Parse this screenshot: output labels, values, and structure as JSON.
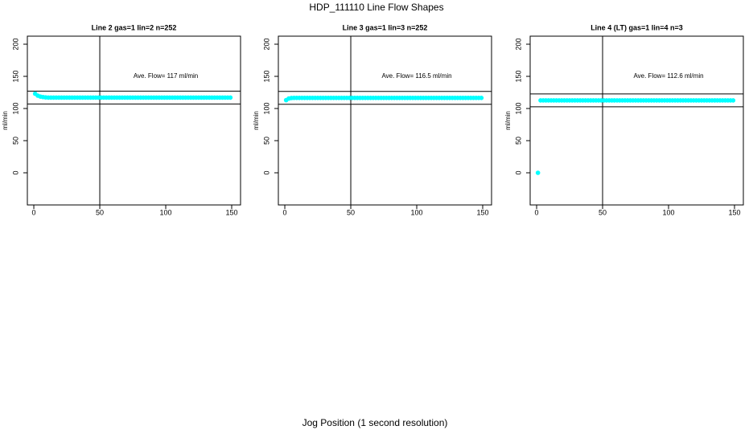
{
  "title": "HDP_111110  Line Flow Shapes",
  "x_label": "Jog Position (1 second resolution)",
  "chart_data": [
    {
      "type": "scatter",
      "title": "Line 2 gas=1 lin=2 n=252",
      "y_label": "ml/min",
      "annotation": "Ave. Flow=  117  ml/min",
      "xlim": [
        -4.9,
        156.7
      ],
      "ylim": [
        -50,
        212.5
      ],
      "xticks": [
        0,
        50,
        100,
        150
      ],
      "yticks": [
        0,
        50,
        100,
        150,
        200
      ],
      "hlines": [
        127,
        107
      ],
      "vlines": [
        50
      ],
      "series": [
        {
          "color": "#00ffff",
          "x": [
            1,
            3,
            5,
            7,
            9,
            11,
            13,
            15,
            17,
            19,
            21,
            23,
            25,
            27,
            29,
            31,
            33,
            35,
            37,
            39,
            41,
            43,
            45,
            47,
            49,
            51,
            53,
            55,
            57,
            59,
            61,
            63,
            65,
            67,
            69,
            71,
            73,
            75,
            77,
            79,
            81,
            83,
            85,
            87,
            89,
            91,
            93,
            95,
            97,
            99,
            101,
            103,
            105,
            107,
            109,
            111,
            113,
            115,
            117,
            119,
            121,
            123,
            125,
            127,
            129,
            131,
            133,
            135,
            137,
            139,
            141,
            143,
            145,
            147,
            149
          ],
          "values": [
            123,
            120,
            118.5,
            117.8,
            117.3,
            117,
            117,
            117,
            117,
            117,
            117,
            117,
            117,
            117,
            117,
            117,
            117,
            117,
            117,
            117,
            117,
            117,
            117,
            117,
            117,
            117,
            117,
            117,
            117,
            117,
            117,
            117,
            117,
            117,
            117,
            117,
            117,
            117,
            117,
            117,
            117,
            117,
            117,
            117,
            117,
            117,
            117,
            117,
            117,
            117,
            117,
            117,
            117,
            117,
            117,
            117,
            117,
            117,
            117,
            117,
            117,
            117,
            117,
            117,
            117,
            117,
            117,
            117,
            117,
            117,
            117,
            117,
            117,
            117,
            117
          ]
        }
      ]
    },
    {
      "type": "scatter",
      "title": "Line 3 gas=1 lin=3 n=252",
      "y_label": "ml/min",
      "annotation": "Ave. Flow=  116.5  ml/min",
      "xlim": [
        -4.9,
        156.7
      ],
      "ylim": [
        -50,
        212.5
      ],
      "xticks": [
        0,
        50,
        100,
        150
      ],
      "yticks": [
        0,
        50,
        100,
        150,
        200
      ],
      "hlines": [
        126.5,
        106.5
      ],
      "vlines": [
        50
      ],
      "series": [
        {
          "color": "#00ffff",
          "x": [
            1,
            3,
            5,
            7,
            9,
            11,
            13,
            15,
            17,
            19,
            21,
            23,
            25,
            27,
            29,
            31,
            33,
            35,
            37,
            39,
            41,
            43,
            45,
            47,
            49,
            51,
            53,
            55,
            57,
            59,
            61,
            63,
            65,
            67,
            69,
            71,
            73,
            75,
            77,
            79,
            81,
            83,
            85,
            87,
            89,
            91,
            93,
            95,
            97,
            99,
            101,
            103,
            105,
            107,
            109,
            111,
            113,
            115,
            117,
            119,
            121,
            123,
            125,
            127,
            129,
            131,
            133,
            135,
            137,
            139,
            141,
            143,
            145,
            147,
            149
          ],
          "values": [
            113,
            115.5,
            116.3,
            116.5,
            116.5,
            116.5,
            116.5,
            116.5,
            116.5,
            116.5,
            116.5,
            116.5,
            116.5,
            116.5,
            116.5,
            116.5,
            116.5,
            116.5,
            116.5,
            116.5,
            116.5,
            116.5,
            116.5,
            116.5,
            116.5,
            116.5,
            116.5,
            116.5,
            116.5,
            116.5,
            116.5,
            116.5,
            116.5,
            116.5,
            116.5,
            116.5,
            116.5,
            116.5,
            116.5,
            116.5,
            116.5,
            116.5,
            116.5,
            116.5,
            116.5,
            116.5,
            116.5,
            116.5,
            116.5,
            116.5,
            116.5,
            116.5,
            116.5,
            116.5,
            116.5,
            116.5,
            116.5,
            116.5,
            116.5,
            116.5,
            116.5,
            116.5,
            116.5,
            116.5,
            116.5,
            116.5,
            116.5,
            116.5,
            116.5,
            116.5,
            116.5,
            116.5,
            116.5,
            116.5,
            116.5
          ]
        }
      ]
    },
    {
      "type": "scatter",
      "title": "Line 4 (LT) gas=1 lin=4 n=3",
      "y_label": "ml/min",
      "annotation": "Ave. Flow=  112.6  ml/min",
      "xlim": [
        -4.9,
        156.7
      ],
      "ylim": [
        -50,
        212.5
      ],
      "xticks": [
        0,
        50,
        100,
        150
      ],
      "yticks": [
        0,
        50,
        100,
        150,
        200
      ],
      "hlines": [
        122.6,
        102.6
      ],
      "vlines": [
        50
      ],
      "series": [
        {
          "color": "#00ffff",
          "x": [
            1,
            3,
            5,
            7,
            9,
            11,
            13,
            15,
            17,
            19,
            21,
            23,
            25,
            27,
            29,
            31,
            33,
            35,
            37,
            39,
            41,
            43,
            45,
            47,
            49,
            51,
            53,
            55,
            57,
            59,
            61,
            63,
            65,
            67,
            69,
            71,
            73,
            75,
            77,
            79,
            81,
            83,
            85,
            87,
            89,
            91,
            93,
            95,
            97,
            99,
            101,
            103,
            105,
            107,
            109,
            111,
            113,
            115,
            117,
            119,
            121,
            123,
            125,
            127,
            129,
            131,
            133,
            135,
            137,
            139,
            141,
            143,
            145,
            147,
            149
          ],
          "values": [
            0,
            112.6,
            112.6,
            112.6,
            112.6,
            112.6,
            112.6,
            112.6,
            112.6,
            112.6,
            112.6,
            112.6,
            112.6,
            112.6,
            112.6,
            112.6,
            112.6,
            112.6,
            112.6,
            112.6,
            112.6,
            112.6,
            112.6,
            112.6,
            112.6,
            112.6,
            112.6,
            112.6,
            112.6,
            112.6,
            112.6,
            112.6,
            112.6,
            112.6,
            112.6,
            112.6,
            112.6,
            112.6,
            112.6,
            112.6,
            112.6,
            112.6,
            112.6,
            112.6,
            112.6,
            112.6,
            112.6,
            112.6,
            112.6,
            112.6,
            112.6,
            112.6,
            112.6,
            112.6,
            112.6,
            112.6,
            112.6,
            112.6,
            112.6,
            112.6,
            112.6,
            112.6,
            112.6,
            112.6,
            112.6,
            112.6,
            112.6,
            112.6,
            112.6,
            112.6,
            112.6,
            112.6,
            112.6,
            112.6,
            112.6
          ]
        }
      ]
    }
  ]
}
